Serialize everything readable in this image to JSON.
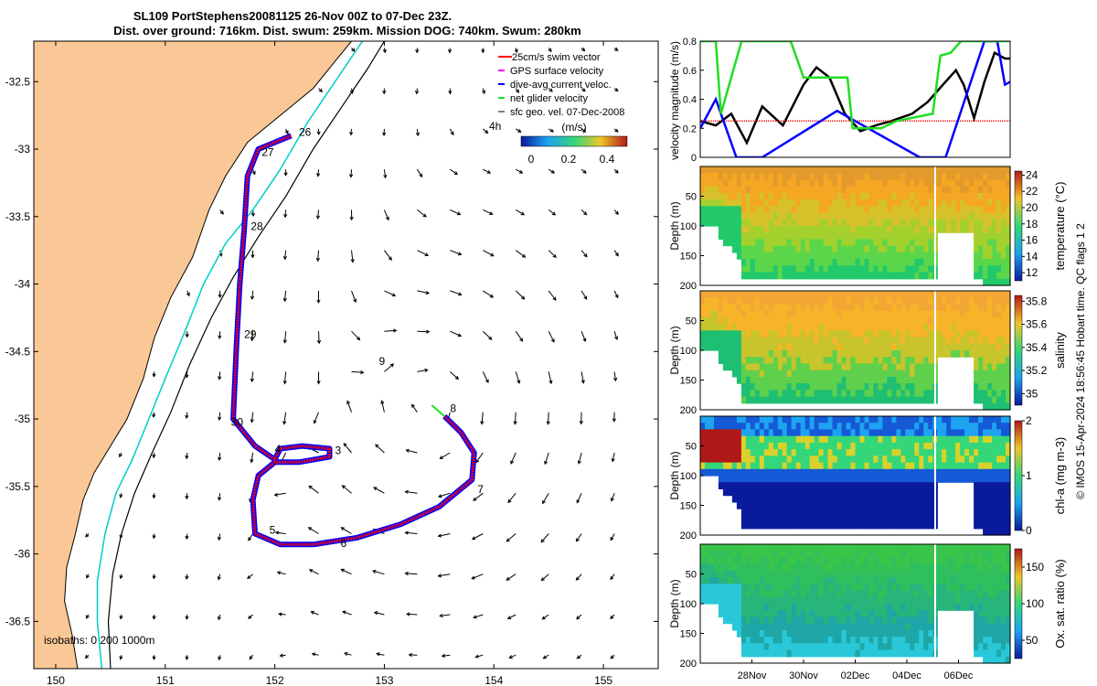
{
  "chart_data": [
    {
      "type": "scatter",
      "id": "map",
      "title_lines": [
        "SL109 PortStephens20081125 26-Nov 00Z to 07-Dec 23Z.",
        "Dist. over ground: 716km. Dist. swum: 259km. Mission DOG: 740km. Swum: 280km"
      ],
      "xlim": [
        149.8,
        155.5
      ],
      "ylim": [
        -36.85,
        -32.2
      ],
      "xticks": [
        150,
        151,
        152,
        153,
        154,
        155
      ],
      "yticks": [
        -32.5,
        -33,
        -33.5,
        -34,
        -34.5,
        -35,
        -35.5,
        -36,
        -36.5
      ],
      "legend": {
        "placement": "top-right",
        "entries": [
          {
            "label": "25cm/s swim vector",
            "color": "#ff0000"
          },
          {
            "label": "GPS surface velocity",
            "color": "#ff00ff"
          },
          {
            "label": "dive-avg current veloc.",
            "color": "#0000ff"
          },
          {
            "label": "net glider velocity",
            "color": "#00dd00"
          },
          {
            "label": "sfc geo. vel. 07-Dec-2008",
            "color": "#000000"
          }
        ]
      },
      "colorbar": {
        "tag": "4h",
        "unit": "(m/s)",
        "ticks": [
          "0",
          "0.2",
          "0.4"
        ]
      },
      "isobath_note": "isobaths: 0   200  1000m",
      "colors": {
        "land": "#fac896",
        "track_red": "#ff0000",
        "track_blue": "#0000ff",
        "isobath_200": "#00cccc",
        "isobath_1000": "#000000"
      },
      "coast": [
        [
          150.2,
          -36.85
        ],
        [
          150.15,
          -36.6
        ],
        [
          150.08,
          -36.35
        ],
        [
          150.1,
          -36.1
        ],
        [
          150.18,
          -35.85
        ],
        [
          150.25,
          -35.6
        ],
        [
          150.35,
          -35.4
        ],
        [
          150.5,
          -35.2
        ],
        [
          150.65,
          -35.0
        ],
        [
          150.8,
          -34.7
        ],
        [
          150.9,
          -34.4
        ],
        [
          151.05,
          -34.1
        ],
        [
          151.25,
          -33.8
        ],
        [
          151.4,
          -33.45
        ],
        [
          151.55,
          -33.2
        ],
        [
          151.75,
          -32.95
        ],
        [
          152.05,
          -32.75
        ],
        [
          152.35,
          -32.55
        ],
        [
          152.55,
          -32.35
        ],
        [
          152.7,
          -32.2
        ]
      ],
      "isobath_200": [
        [
          150.42,
          -36.85
        ],
        [
          150.38,
          -36.5
        ],
        [
          150.38,
          -36.2
        ],
        [
          150.45,
          -35.85
        ],
        [
          150.55,
          -35.55
        ],
        [
          150.7,
          -35.3
        ],
        [
          150.85,
          -35.0
        ],
        [
          151.0,
          -34.7
        ],
        [
          151.18,
          -34.35
        ],
        [
          151.35,
          -34.0
        ],
        [
          151.55,
          -33.7
        ],
        [
          151.8,
          -33.45
        ],
        [
          152.05,
          -33.15
        ],
        [
          152.3,
          -32.8
        ],
        [
          152.55,
          -32.5
        ],
        [
          152.8,
          -32.2
        ]
      ],
      "isobath_1000": [
        [
          150.5,
          -36.85
        ],
        [
          150.48,
          -36.5
        ],
        [
          150.52,
          -36.15
        ],
        [
          150.6,
          -35.85
        ],
        [
          150.72,
          -35.55
        ],
        [
          150.88,
          -35.25
        ],
        [
          151.05,
          -34.95
        ],
        [
          151.22,
          -34.6
        ],
        [
          151.42,
          -34.25
        ],
        [
          151.62,
          -33.95
        ],
        [
          151.85,
          -33.65
        ],
        [
          152.1,
          -33.35
        ],
        [
          152.35,
          -33.0
        ],
        [
          152.6,
          -32.7
        ],
        [
          152.85,
          -32.4
        ],
        [
          153.0,
          -32.2
        ]
      ],
      "track": [
        [
          152.15,
          -32.9
        ],
        [
          151.85,
          -33.0
        ],
        [
          151.75,
          -33.2
        ],
        [
          151.72,
          -33.6
        ],
        [
          151.68,
          -34.0
        ],
        [
          151.65,
          -34.45
        ],
        [
          151.62,
          -35.0
        ],
        [
          151.82,
          -35.2
        ],
        [
          152.0,
          -35.3
        ],
        [
          152.05,
          -35.22
        ],
        [
          152.25,
          -35.2
        ],
        [
          152.5,
          -35.22
        ],
        [
          152.5,
          -35.28
        ],
        [
          152.22,
          -35.32
        ],
        [
          152.0,
          -35.32
        ],
        [
          151.85,
          -35.42
        ],
        [
          151.8,
          -35.6
        ],
        [
          151.82,
          -35.85
        ],
        [
          152.05,
          -35.93
        ],
        [
          152.35,
          -35.93
        ],
        [
          152.75,
          -35.88
        ],
        [
          153.15,
          -35.78
        ],
        [
          153.5,
          -35.65
        ],
        [
          153.8,
          -35.45
        ],
        [
          153.82,
          -35.25
        ],
        [
          153.7,
          -35.1
        ],
        [
          153.55,
          -34.98
        ]
      ],
      "track_labels": [
        {
          "text": "26",
          "lon": 152.22,
          "lat": -32.9
        },
        {
          "text": "27",
          "lon": 151.88,
          "lat": -33.05
        },
        {
          "text": "28",
          "lon": 151.78,
          "lat": -33.6
        },
        {
          "text": "29",
          "lon": 151.72,
          "lat": -34.4
        },
        {
          "text": "30",
          "lon": 151.6,
          "lat": -35.05
        },
        {
          "text": "4",
          "lon": 152.0,
          "lat": -35.25
        },
        {
          "text": "3",
          "lon": 152.55,
          "lat": -35.26
        },
        {
          "text": "5",
          "lon": 151.95,
          "lat": -35.85
        },
        {
          "text": "6",
          "lon": 152.6,
          "lat": -35.95
        },
        {
          "text": "7",
          "lon": 153.85,
          "lat": -35.55
        },
        {
          "text": "8",
          "lon": 153.6,
          "lat": -34.95
        },
        {
          "text": "9",
          "lon": 152.95,
          "lat": -34.6
        }
      ]
    },
    {
      "type": "line",
      "id": "velocity",
      "ylabel": "velocity magnitude (m/s)",
      "ylim": [
        0,
        0.8
      ],
      "yticks": [
        "0",
        "0.2",
        "0.4",
        "0.6",
        "0.8"
      ],
      "x_day_range": [
        26,
        38
      ],
      "series": [
        {
          "color": "#000000",
          "values": [
            [
              26.0,
              0.25
            ],
            [
              26.6,
              0.22
            ],
            [
              27.2,
              0.3
            ],
            [
              27.8,
              0.1
            ],
            [
              28.4,
              0.35
            ],
            [
              29.2,
              0.22
            ],
            [
              30.0,
              0.5
            ],
            [
              30.5,
              0.62
            ],
            [
              31.0,
              0.55
            ],
            [
              31.6,
              0.3
            ],
            [
              32.2,
              0.18
            ],
            [
              32.8,
              0.22
            ],
            [
              33.4,
              0.25
            ],
            [
              34.2,
              0.3
            ],
            [
              34.8,
              0.38
            ],
            [
              35.4,
              0.5
            ],
            [
              35.9,
              0.6
            ],
            [
              36.2,
              0.5
            ],
            [
              36.6,
              0.27
            ],
            [
              37.0,
              0.52
            ],
            [
              37.4,
              0.72
            ],
            [
              37.8,
              0.68
            ],
            [
              38.0,
              0.68
            ]
          ]
        },
        {
          "color": "#ff0000",
          "values": [
            [
              26.0,
              0.25
            ],
            [
              38.0,
              0.25
            ]
          ]
        },
        {
          "color": "#0000ff",
          "values": [
            [
              26.0,
              0.2
            ],
            [
              26.6,
              0.4
            ],
            [
              27.4,
              0.0
            ],
            [
              28.4,
              0.0
            ],
            [
              31.3,
              0.32
            ],
            [
              34.5,
              0.0
            ],
            [
              35.5,
              0.0
            ],
            [
              37.0,
              0.8
            ],
            [
              37.5,
              0.8
            ],
            [
              37.8,
              0.5
            ],
            [
              38.0,
              0.52
            ]
          ]
        },
        {
          "color": "#22dd22",
          "values": [
            [
              26.0,
              0.8
            ],
            [
              26.6,
              0.8
            ],
            [
              26.8,
              0.3
            ],
            [
              27.6,
              0.8
            ],
            [
              29.5,
              0.8
            ],
            [
              30.0,
              0.55
            ],
            [
              31.7,
              0.55
            ],
            [
              31.9,
              0.2
            ],
            [
              33.0,
              0.2
            ],
            [
              33.6,
              0.25
            ],
            [
              35.0,
              0.3
            ],
            [
              35.3,
              0.7
            ],
            [
              35.7,
              0.72
            ],
            [
              36.1,
              0.8
            ],
            [
              38.0,
              0.8
            ]
          ]
        }
      ]
    },
    {
      "type": "heatmap",
      "id": "temperature",
      "ylabel": "Depth (m)",
      "ylim": [
        200,
        0
      ],
      "yticks": [
        "",
        "50",
        "100",
        "150",
        "200"
      ],
      "colorbar": {
        "label": "temperature (°C)",
        "ticks": [
          "12",
          "14",
          "16",
          "18",
          "20",
          "22",
          "24"
        ],
        "min": 11,
        "max": 24.5
      },
      "colors": [
        "#e39a2c",
        "#f5a623",
        "#d6c12a",
        "#a3d02c",
        "#5bd64a",
        "#22c96b"
      ]
    },
    {
      "type": "heatmap",
      "id": "salinity",
      "ylabel": "Depth (m)",
      "ylim": [
        200,
        0
      ],
      "yticks": [
        "",
        "50",
        "100",
        "150",
        "200"
      ],
      "colorbar": {
        "label": "salinity",
        "ticks": [
          "35",
          "35.2",
          "35.4",
          "35.6",
          "35.8"
        ],
        "min": 34.9,
        "max": 35.85
      },
      "colors": [
        "#f2a735",
        "#f7b429",
        "#c8c42b",
        "#5fd04b",
        "#1fbf73"
      ]
    },
    {
      "type": "heatmap",
      "id": "chla",
      "ylabel": "Depth (m)",
      "ylim": [
        200,
        0
      ],
      "yticks": [
        "",
        "50",
        "100",
        "150",
        "200"
      ],
      "colorbar": {
        "label": "chl-a (mg m-3)",
        "ticks": [
          "0",
          "1",
          "2"
        ],
        "min": 0,
        "max": 2
      },
      "colors": [
        "#0a1a9c",
        "#1559d6",
        "#1ea3f0",
        "#34d67a",
        "#d9d22a",
        "#b01818"
      ]
    },
    {
      "type": "heatmap",
      "id": "oxygen",
      "ylabel": "Depth (m)",
      "ylim": [
        200,
        0
      ],
      "yticks": [
        "",
        "50",
        "100",
        "150",
        "200"
      ],
      "xticks": [
        "28Nov",
        "30Nov",
        "02Dec",
        "04Dec",
        "06Dec"
      ],
      "colorbar": {
        "label": "Ox. sat. ratio (%)",
        "ticks": [
          "50",
          "100",
          "150"
        ],
        "min": 25,
        "max": 175
      },
      "colors": [
        "#3bc44a",
        "#2fbf5c",
        "#27b57a",
        "#1fa6a6",
        "#29c8d8"
      ]
    }
  ],
  "footer": {
    "credit": "© IMOS 15-Apr-2024 18:56:45 Hobart time. QC flags 1  2"
  }
}
